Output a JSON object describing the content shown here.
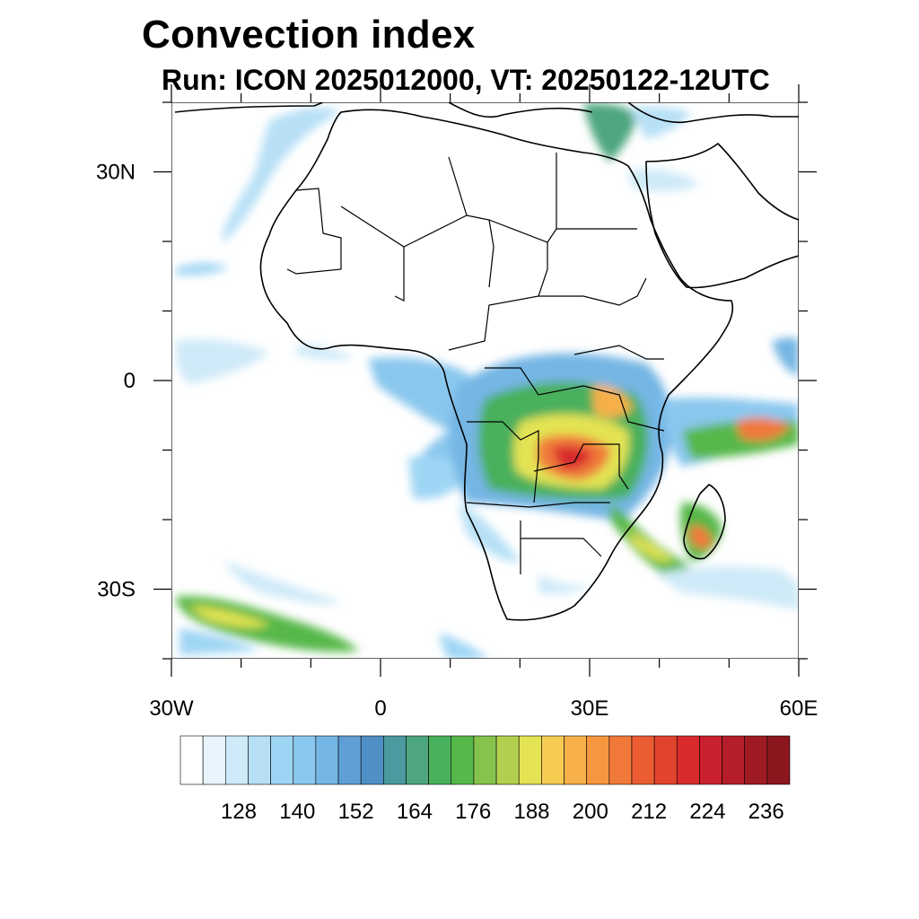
{
  "title": "Convection index",
  "subtitle": "Run: ICON 2025012000,  VT: 20250122-12UTC",
  "map": {
    "lon_range": [
      -30,
      60
    ],
    "lat_range": [
      -40,
      40
    ],
    "x_tick_labels": [
      "30W",
      "0",
      "30E",
      "60E"
    ],
    "y_tick_labels": [
      "30N",
      "0",
      "30S"
    ]
  },
  "colorbar": {
    "labels": [
      "128",
      "140",
      "152",
      "164",
      "176",
      "188",
      "200",
      "212",
      "224",
      "236"
    ],
    "colors": [
      "#ffffff",
      "#e8f5fc",
      "#cfeaf8",
      "#b7e0f6",
      "#9fd5f4",
      "#8ac7ee",
      "#74b6e4",
      "#5f9fd6",
      "#4f8fc6",
      "#4a9a9f",
      "#4da67e",
      "#49b05c",
      "#57b84a",
      "#86c34c",
      "#b3cf4e",
      "#e3e353",
      "#f5cb52",
      "#f7b04a",
      "#f6963e",
      "#f0793a",
      "#eb5c33",
      "#e2432c",
      "#d82a2d",
      "#c8202c",
      "#b41d29",
      "#9e1a23",
      "#8c171e"
    ]
  }
}
